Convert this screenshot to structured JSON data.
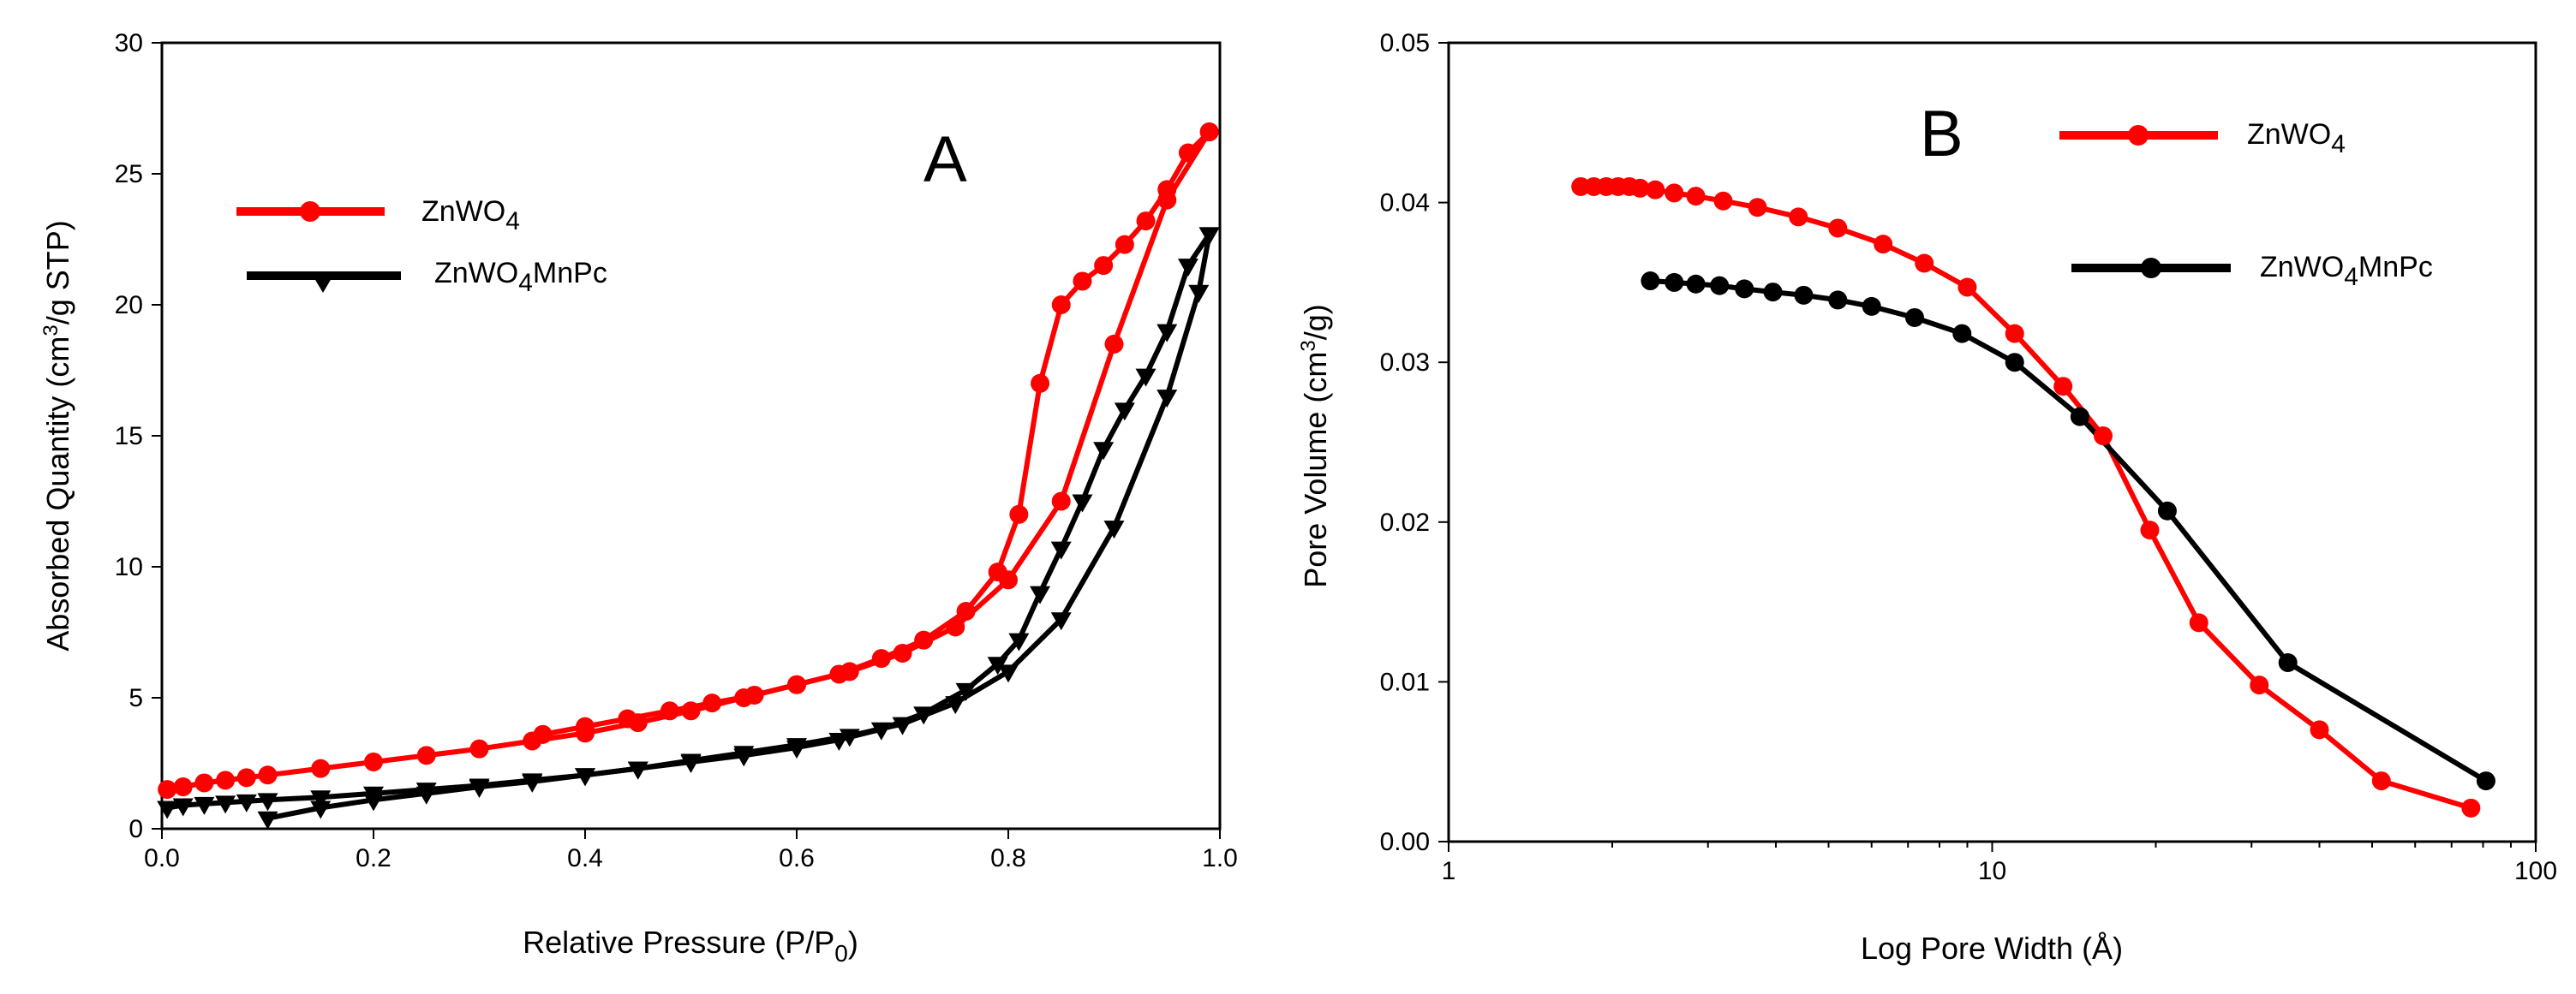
{
  "figure": {
    "panels": [
      {
        "panel_label": "A"
      },
      {
        "panel_label": "B"
      }
    ]
  },
  "chart_data": [
    {
      "type": "line",
      "panel": "A",
      "title": "",
      "panel_label": "A",
      "xlabel": "Relative Pressure (P/P",
      "xlabel_sub": "0",
      "xlabel_end": ")",
      "ylabel": "Absorbed Quantity (cm",
      "ylabel_sup": "3",
      "ylabel_end": "/g STP)",
      "xlim": [
        0,
        1.0
      ],
      "ylim": [
        0,
        30
      ],
      "xscale": "linear",
      "xticks": [
        0.0,
        0.2,
        0.4,
        0.6,
        0.8,
        1.0
      ],
      "yticks": [
        0,
        5,
        10,
        15,
        20,
        25,
        30
      ],
      "xtick_labels": [
        "0.0",
        "0.2",
        "0.4",
        "0.6",
        "0.8",
        "1.0"
      ],
      "ytick_labels": [
        "0",
        "5",
        "10",
        "15",
        "20",
        "25",
        "30"
      ],
      "grid": false,
      "legend_position": "upper-left",
      "series": [
        {
          "name": "ZnWO",
          "name_sub": "4",
          "name_suffix": "",
          "color": "#ff0000",
          "marker": "circle",
          "adsorption": {
            "x": [
              0.005,
              0.02,
              0.04,
              0.06,
              0.08,
              0.1,
              0.15,
              0.2,
              0.25,
              0.3,
              0.35,
              0.4,
              0.45,
              0.5,
              0.55,
              0.6,
              0.65,
              0.7,
              0.75,
              0.8,
              0.85,
              0.9,
              0.95,
              0.99
            ],
            "y": [
              1.5,
              1.6,
              1.75,
              1.85,
              1.95,
              2.05,
              2.3,
              2.55,
              2.8,
              3.05,
              3.35,
              3.65,
              4.05,
              4.5,
              5.0,
              5.5,
              6.0,
              6.7,
              7.7,
              9.5,
              12.5,
              18.5,
              24.0,
              26.6
            ]
          },
          "desorption": {
            "x": [
              0.99,
              0.97,
              0.95,
              0.93,
              0.91,
              0.89,
              0.87,
              0.85,
              0.83,
              0.81,
              0.79,
              0.76,
              0.72,
              0.68,
              0.64,
              0.6,
              0.56,
              0.52,
              0.48,
              0.44,
              0.4,
              0.36
            ],
            "y": [
              26.6,
              25.8,
              24.4,
              23.2,
              22.3,
              21.5,
              20.9,
              20.0,
              17.0,
              12.0,
              9.8,
              8.3,
              7.2,
              6.5,
              5.9,
              5.5,
              5.1,
              4.8,
              4.5,
              4.2,
              3.9,
              3.6
            ]
          }
        },
        {
          "name": "ZnWO",
          "name_sub": "4",
          "name_suffix": "MnPc",
          "color": "#000000",
          "marker": "triangle-down",
          "adsorption": {
            "x": [
              0.005,
              0.02,
              0.04,
              0.06,
              0.08,
              0.1,
              0.15,
              0.2,
              0.25,
              0.3,
              0.35,
              0.4,
              0.45,
              0.5,
              0.55,
              0.6,
              0.65,
              0.7,
              0.75,
              0.8,
              0.85,
              0.9,
              0.95,
              0.98,
              0.99
            ],
            "y": [
              0.8,
              0.9,
              0.95,
              1.0,
              1.05,
              1.1,
              1.2,
              1.35,
              1.5,
              1.65,
              1.85,
              2.05,
              2.3,
              2.6,
              2.9,
              3.2,
              3.55,
              4.0,
              4.8,
              6.0,
              8.0,
              11.5,
              16.5,
              20.5,
              22.7
            ]
          },
          "desorption": {
            "x": [
              0.99,
              0.97,
              0.95,
              0.93,
              0.91,
              0.89,
              0.87,
              0.85,
              0.83,
              0.81,
              0.79,
              0.76,
              0.72,
              0.68,
              0.64,
              0.6,
              0.55,
              0.5,
              0.45,
              0.4,
              0.35,
              0.3,
              0.25,
              0.2,
              0.15,
              0.1
            ],
            "y": [
              22.7,
              21.5,
              19.0,
              17.3,
              16.0,
              14.5,
              12.5,
              10.7,
              9.0,
              7.2,
              6.3,
              5.3,
              4.4,
              3.8,
              3.4,
              3.1,
              2.8,
              2.55,
              2.3,
              2.05,
              1.8,
              1.6,
              1.35,
              1.1,
              0.8,
              0.4
            ]
          }
        }
      ]
    },
    {
      "type": "line",
      "panel": "B",
      "title": "",
      "panel_label": "B",
      "xlabel": "Log Pore Width (Å)",
      "ylabel": "Pore Volume (cm",
      "ylabel_sup": "3",
      "ylabel_end": "/g)",
      "xlim": [
        1,
        100
      ],
      "ylim": [
        0,
        0.05
      ],
      "xscale": "log",
      "xticks": [
        1,
        10,
        100
      ],
      "yticks": [
        0.0,
        0.01,
        0.02,
        0.03,
        0.04,
        0.05
      ],
      "xtick_labels": [
        "1",
        "10",
        "100"
      ],
      "ytick_labels": [
        "0.00",
        "0.01",
        "0.02",
        "0.03",
        "0.04",
        "0.05"
      ],
      "grid": false,
      "legend_position": "upper-right",
      "series": [
        {
          "name": "ZnWO",
          "name_sub": "4",
          "name_suffix": "",
          "color": "#ff0000",
          "marker": "circle",
          "x": [
            1.75,
            1.85,
            1.95,
            2.05,
            2.15,
            2.25,
            2.4,
            2.6,
            2.85,
            3.2,
            3.7,
            4.4,
            5.2,
            6.3,
            7.5,
            9.0,
            11.0,
            13.5,
            16.0,
            19.5,
            24.0,
            31.0,
            40.0,
            52.0,
            76.0
          ],
          "y": [
            0.041,
            0.041,
            0.041,
            0.041,
            0.041,
            0.0409,
            0.0408,
            0.0406,
            0.0404,
            0.0401,
            0.0397,
            0.0391,
            0.0384,
            0.0374,
            0.0362,
            0.0347,
            0.0318,
            0.0285,
            0.0254,
            0.0195,
            0.0137,
            0.0098,
            0.007,
            0.0038,
            0.0021
          ]
        },
        {
          "name": "ZnWO",
          "name_sub": "4",
          "name_suffix": "MnPc",
          "color": "#000000",
          "marker": "circle",
          "x": [
            2.35,
            2.6,
            2.85,
            3.15,
            3.5,
            3.95,
            4.5,
            5.2,
            6.0,
            7.2,
            8.8,
            11.0,
            14.5,
            21.0,
            35.0,
            81.0
          ],
          "y": [
            0.0351,
            0.035,
            0.0349,
            0.0348,
            0.0346,
            0.0344,
            0.0342,
            0.0339,
            0.0335,
            0.0328,
            0.0318,
            0.03,
            0.0266,
            0.0207,
            0.0112,
            0.0038
          ]
        }
      ]
    }
  ]
}
